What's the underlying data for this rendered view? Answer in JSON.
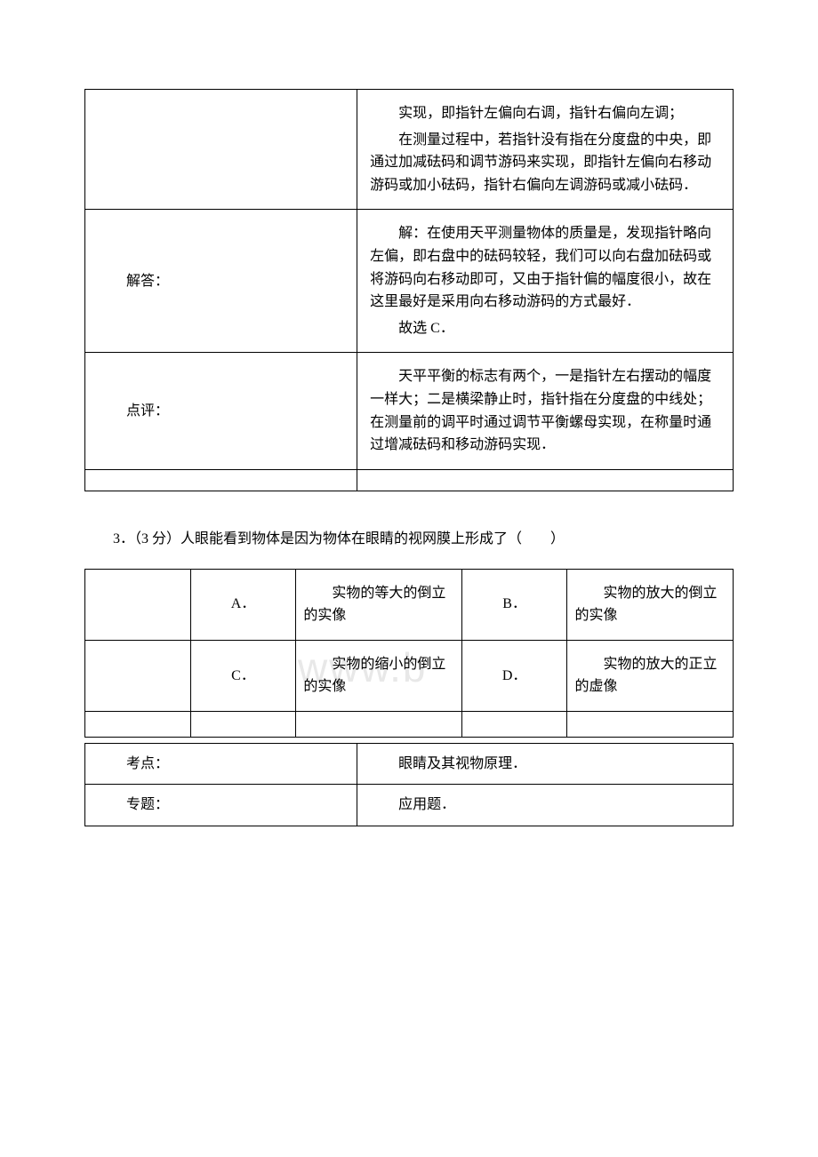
{
  "watermark": "www.b",
  "table1": {
    "rows": [
      {
        "label": "",
        "paragraphs": [
          "实现，即指针左偏向右调，指针右偏向左调；",
          "在测量过程中，若指针没有指在分度盘的中央，即通过加减砝码和调节游码来实现，即指针左偏向右移动游码或加小砝码，指针右偏向左调游码或减小砝码．"
        ]
      },
      {
        "label": "解答：",
        "paragraphs": [
          "解：在使用天平测量物体的质量是，发现指针略向左偏，即右盘中的砝码较轻，我们可以向右盘加砝码或将游码向右移动即可，又由于指针偏的幅度很小，故在这里最好是采用向右移动游码的方式最好．",
          "故选 C．"
        ]
      },
      {
        "label": "点评：",
        "paragraphs": [
          "天平平衡的标志有两个，一是指针左右摆动的幅度一样大；二是横梁静止时，指针指在分度盘的中线处；在测量前的调平时通过调节平衡螺母实现，在称量时通过增减砝码和移动游码实现．"
        ]
      }
    ]
  },
  "question": {
    "number": "3．",
    "points": "（3 分）",
    "text": "人眼能看到物体是因为物体在眼睛的视网膜上形成了（　　）"
  },
  "choices": {
    "A": "实物的等大的倒立的实像",
    "B": "实物的放大的倒立的实像",
    "C": "实物的缩小的倒立的实像",
    "D": "实物的放大的正立的虚像",
    "labels": {
      "A": "A．",
      "B": "B．",
      "C": "C．",
      "D": "D．"
    }
  },
  "meta": {
    "kaodian_label": "考点：",
    "kaodian_value": "眼睛及其视物原理．",
    "zhuanti_label": "专题：",
    "zhuanti_value": "应用题．"
  },
  "colors": {
    "text": "#000000",
    "background": "#ffffff",
    "border": "#000000",
    "watermark": "#e8e8e8"
  }
}
